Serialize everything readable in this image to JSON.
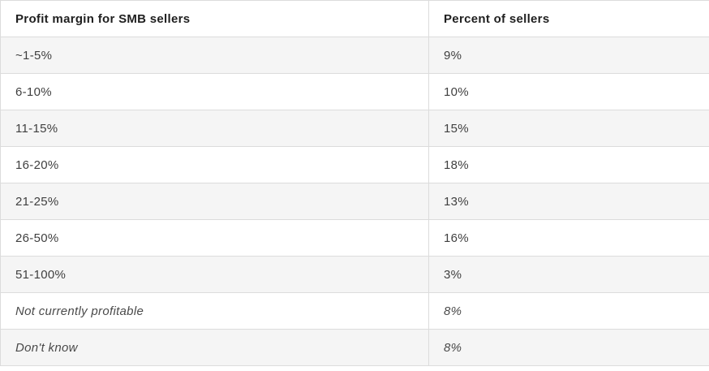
{
  "table": {
    "columns": [
      {
        "label": "Profit margin for SMB sellers"
      },
      {
        "label": "Percent of sellers"
      }
    ],
    "rows": [
      {
        "margin": "~1-5%",
        "percent": "9%"
      },
      {
        "margin": "6-10%",
        "percent": "10%"
      },
      {
        "margin": "11-15%",
        "percent": "15%"
      },
      {
        "margin": "16-20%",
        "percent": "18%"
      },
      {
        "margin": "21-25%",
        "percent": "13%"
      },
      {
        "margin": "26-50%",
        "percent": "16%"
      },
      {
        "margin": "51-100%",
        "percent": "3%"
      },
      {
        "margin": "Not currently profitable",
        "percent": "8%"
      },
      {
        "margin": "Don't know",
        "percent": "8%"
      }
    ]
  },
  "chart_data": {
    "type": "table",
    "title": "",
    "columns": [
      "Profit margin for SMB sellers",
      "Percent of sellers"
    ],
    "categories": [
      "~1-5%",
      "6-10%",
      "11-15%",
      "16-20%",
      "21-25%",
      "26-50%",
      "51-100%",
      "Not currently profitable",
      "Don't know"
    ],
    "values_percent": [
      9,
      10,
      15,
      18,
      13,
      16,
      3,
      8,
      8
    ],
    "layout_hints": {
      "striped_rows": true,
      "italic_rows": [
        "Not currently profitable",
        "Don't know"
      ],
      "header_bold": true
    }
  },
  "colors": {
    "border": "#dcdcdc",
    "row_alt_bg": "#f5f5f5",
    "header_text": "#1f1f1f",
    "body_text": "#3f3f3f",
    "background": "#ffffff"
  }
}
